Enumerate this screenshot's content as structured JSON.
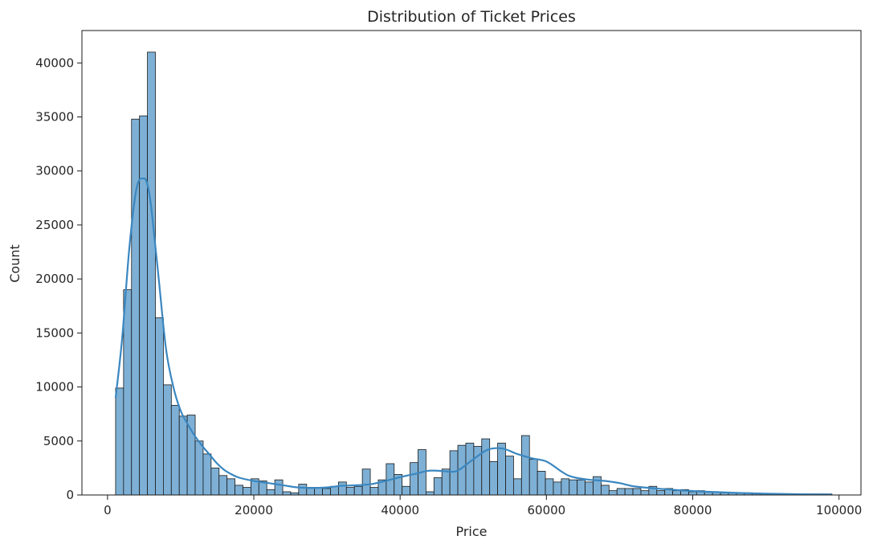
{
  "chart_data": {
    "type": "bar",
    "title": "Distribution of Ticket Prices",
    "xlabel": "Price",
    "ylabel": "Count",
    "xlim": [
      -3500,
      103000
    ],
    "ylim": [
      0,
      43000
    ],
    "x_ticks": [
      0,
      20000,
      40000,
      60000,
      80000,
      100000
    ],
    "x_tick_labels": [
      "0",
      "20000",
      "40000",
      "60000",
      "80000",
      "100000"
    ],
    "y_ticks": [
      0,
      5000,
      10000,
      15000,
      20000,
      25000,
      30000,
      35000,
      40000
    ],
    "y_tick_labels": [
      "0",
      "5000",
      "10000",
      "15000",
      "20000",
      "25000",
      "30000",
      "35000",
      "40000"
    ],
    "grid": false,
    "bar_color": "#7eb0d5",
    "bar_edge_color": "#1a1a1a",
    "kde_color": "#3a87c0",
    "bins": {
      "start": 1105,
      "width": 1088,
      "counts": [
        9900,
        19000,
        34800,
        35100,
        41000,
        16400,
        10200,
        8300,
        7300,
        7400,
        5000,
        3800,
        2500,
        1800,
        1500,
        900,
        700,
        1500,
        1300,
        500,
        1400,
        300,
        200,
        1000,
        700,
        700,
        600,
        800,
        1200,
        700,
        800,
        2400,
        700,
        1400,
        2900,
        1900,
        800,
        3000,
        4200,
        300,
        1600,
        2400,
        4100,
        4600,
        4800,
        4500,
        5200,
        3100,
        4800,
        3600,
        1500,
        5500,
        3300,
        2200,
        1500,
        1200,
        1500,
        1400,
        1400,
        1200,
        1700,
        900,
        400,
        600,
        600,
        600,
        400,
        800,
        400,
        600,
        400,
        500,
        300,
        400,
        300,
        300,
        200,
        200,
        200,
        200,
        100,
        100,
        100,
        100,
        100,
        100,
        100,
        100,
        100,
        100
      ]
    },
    "kde": {
      "x": [
        1105,
        2000,
        3000,
        4000,
        5000,
        5500,
        6000,
        7000,
        8000,
        9000,
        10000,
        11000,
        12000,
        13000,
        14000,
        15000,
        16000,
        17000,
        18000,
        20000,
        22000,
        24000,
        26000,
        28000,
        30000,
        32000,
        34000,
        36000,
        38000,
        40000,
        42000,
        44000,
        46000,
        47000,
        48000,
        50000,
        52000,
        54000,
        56000,
        58000,
        60000,
        62000,
        63000,
        64000,
        66000,
        68000,
        70000,
        72000,
        75000,
        78000,
        82000,
        86000,
        90000,
        95000,
        99000
      ],
      "y": [
        9000,
        14500,
        23000,
        28500,
        29300,
        28600,
        26500,
        20000,
        13500,
        10000,
        7800,
        6500,
        5400,
        4500,
        3700,
        2900,
        2300,
        1900,
        1600,
        1300,
        1100,
        900,
        700,
        650,
        700,
        850,
        900,
        1000,
        1300,
        1650,
        1950,
        2250,
        2200,
        2150,
        2300,
        3300,
        4200,
        4300,
        3800,
        3400,
        3100,
        2200,
        1800,
        1600,
        1400,
        1300,
        1100,
        800,
        600,
        450,
        300,
        200,
        120,
        70,
        40
      ]
    }
  }
}
